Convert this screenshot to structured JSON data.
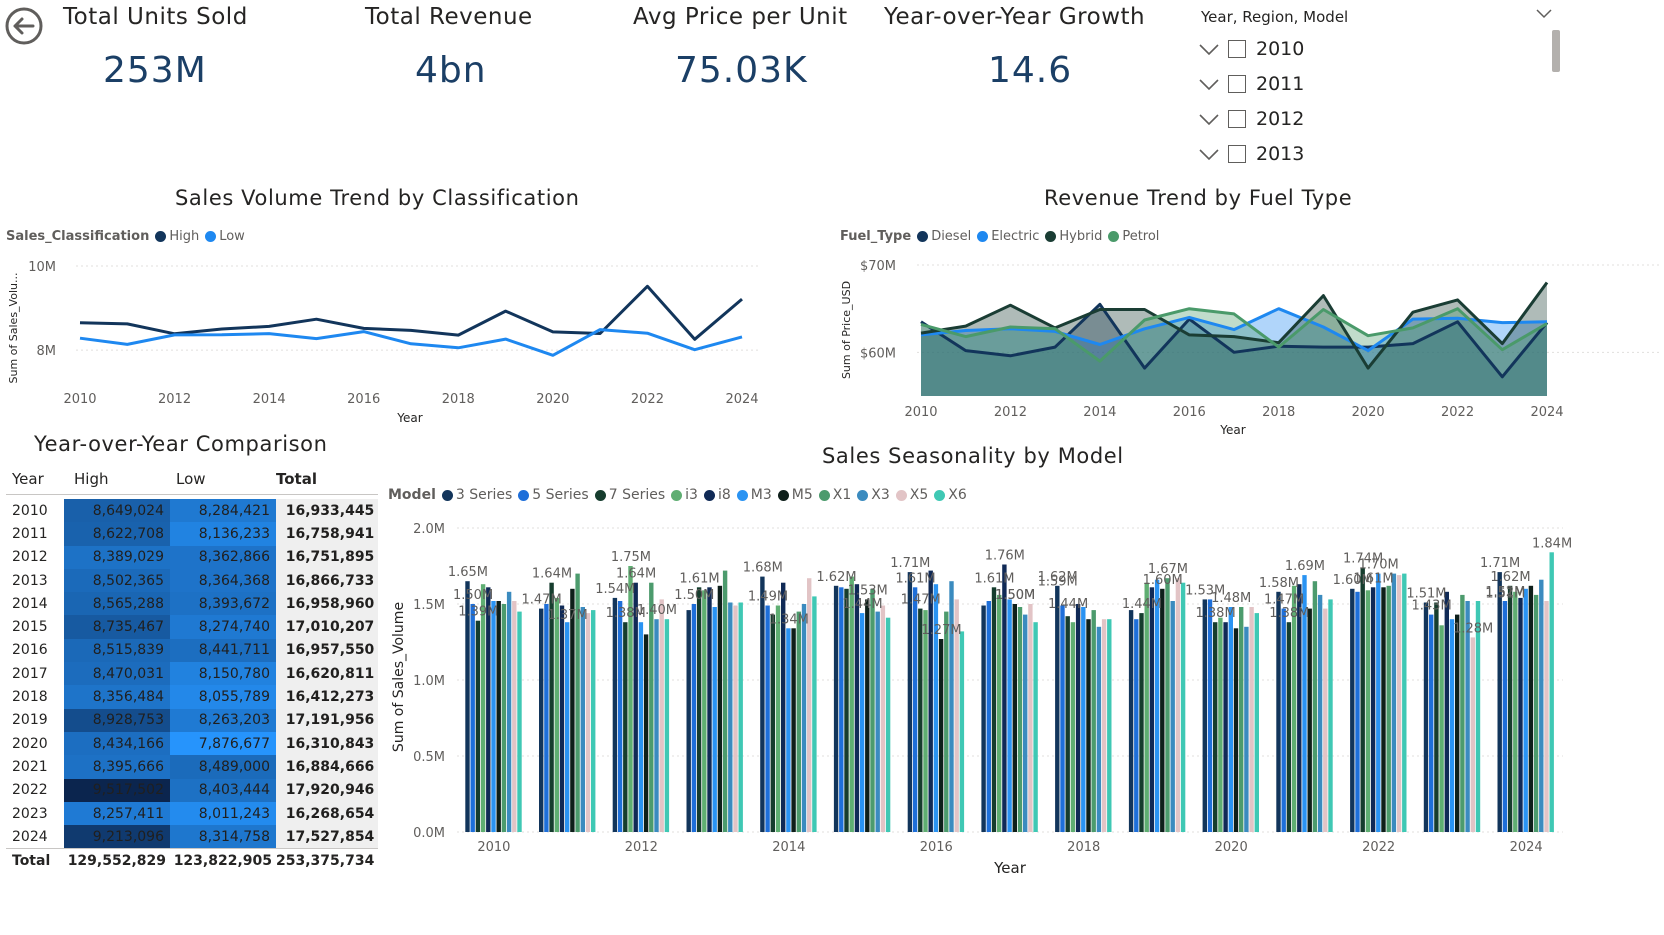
{
  "back_button": {
    "icon": "back-arrow-icon"
  },
  "kpis": [
    {
      "title": "Total Units Sold",
      "value": "253M"
    },
    {
      "title": "Total Revenue",
      "value": "4bn"
    },
    {
      "title": "Avg Price per Unit",
      "value": "75.03K"
    },
    {
      "title": "Year-over-Year Growth",
      "value": "14.6"
    }
  ],
  "slicer": {
    "header": "Year, Region, Model",
    "items": [
      "2010",
      "2011",
      "2012",
      "2013"
    ]
  },
  "volume_chart": {
    "title": "Sales Volume Trend by Classification",
    "legend_title": "Sales_Classification",
    "legend": [
      "High",
      "Low"
    ],
    "y_axis_label": "Sum of Sales_Volu...",
    "x_axis_label": "Year",
    "y_ticks": [
      "10M",
      "8M"
    ],
    "x_ticks": [
      "2010",
      "2012",
      "2014",
      "2016",
      "2018",
      "2020",
      "2022",
      "2024"
    ]
  },
  "revenue_chart": {
    "title": "Revenue Trend by Fuel Type",
    "legend_title": "Fuel_Type",
    "legend": [
      "Diesel",
      "Electric",
      "Hybrid",
      "Petrol"
    ],
    "y_axis_label": "Sum of Price_USD",
    "x_axis_label": "Year",
    "y_ticks": [
      "$70M",
      "$60M"
    ],
    "x_ticks": [
      "2010",
      "2012",
      "2014",
      "2016",
      "2018",
      "2020",
      "2022",
      "2024"
    ]
  },
  "matrix": {
    "title": "Year-over-Year Comparison",
    "headers": [
      "Year",
      "High",
      "Low",
      "Total"
    ],
    "rows": [
      [
        "2010",
        "8,649,024",
        "8,284,421",
        "16,933,445"
      ],
      [
        "2011",
        "8,622,708",
        "8,136,233",
        "16,758,941"
      ],
      [
        "2012",
        "8,389,029",
        "8,362,866",
        "16,751,895"
      ],
      [
        "2013",
        "8,502,365",
        "8,364,368",
        "16,866,733"
      ],
      [
        "2014",
        "8,565,288",
        "8,393,672",
        "16,958,960"
      ],
      [
        "2015",
        "8,735,467",
        "8,274,740",
        "17,010,207"
      ],
      [
        "2016",
        "8,515,839",
        "8,441,711",
        "16,957,550"
      ],
      [
        "2017",
        "8,470,031",
        "8,150,780",
        "16,620,811"
      ],
      [
        "2018",
        "8,356,484",
        "8,055,789",
        "16,412,273"
      ],
      [
        "2019",
        "8,928,753",
        "8,263,203",
        "17,191,956"
      ],
      [
        "2020",
        "8,434,166",
        "7,876,677",
        "16,310,843"
      ],
      [
        "2021",
        "8,395,666",
        "8,489,000",
        "16,884,666"
      ],
      [
        "2022",
        "9,517,502",
        "8,403,444",
        "17,920,946"
      ],
      [
        "2023",
        "8,257,411",
        "8,011,243",
        "16,268,654"
      ],
      [
        "2024",
        "9,213,096",
        "8,314,758",
        "17,527,854"
      ]
    ],
    "total_row": [
      "Total",
      "129,552,829",
      "123,822,905",
      "253,375,734"
    ]
  },
  "seasonality_chart": {
    "title": "Sales Seasonality by Model",
    "legend_title": "Model",
    "y_axis_label": "Sum of Sales_Volume",
    "x_axis_label": "Year",
    "y_ticks": [
      "2.0M",
      "1.5M",
      "1.0M",
      "0.5M",
      "0.0M"
    ],
    "x_ticks": [
      "2010",
      "2012",
      "2014",
      "2016",
      "2018",
      "2020",
      "2022",
      "2024"
    ]
  },
  "colors": {
    "high": "#12355b",
    "low": "#1e88f0",
    "diesel": "#12355b",
    "electric": "#1e88f0",
    "hybrid": "#1a3d34",
    "petrol": "#4a9a6a",
    "kpi_value": "#1b3f66"
  },
  "chart_data": [
    {
      "type": "line",
      "title": "Sales Volume Trend by Classification",
      "x": [
        2010,
        2011,
        2012,
        2013,
        2014,
        2015,
        2016,
        2017,
        2018,
        2019,
        2020,
        2021,
        2022,
        2023,
        2024
      ],
      "series": [
        {
          "name": "High",
          "values": [
            8649024,
            8622708,
            8389029,
            8502365,
            8565288,
            8735467,
            8515839,
            8470031,
            8356484,
            8928753,
            8434166,
            8395666,
            9517502,
            8257411,
            9213096
          ]
        },
        {
          "name": "Low",
          "values": [
            8284421,
            8136233,
            8362866,
            8364368,
            8393672,
            8274740,
            8441711,
            8150780,
            8055789,
            8263203,
            7876677,
            8489000,
            8403444,
            8011243,
            8314758
          ]
        }
      ],
      "xlabel": "Year",
      "ylabel": "Sum of Sales_Volume",
      "ylim": [
        7100000,
        10000000
      ]
    },
    {
      "type": "area",
      "title": "Revenue Trend by Fuel Type",
      "x": [
        2010,
        2011,
        2012,
        2013,
        2014,
        2015,
        2016,
        2017,
        2018,
        2019,
        2020,
        2021,
        2022,
        2023,
        2024
      ],
      "series": [
        {
          "name": "Diesel",
          "values": [
            63.5,
            60.2,
            59.6,
            60.6,
            65.5,
            58.2,
            63.8,
            60.0,
            60.7,
            60.6,
            60.6,
            61.0,
            63.5,
            57.2,
            63.4
          ]
        },
        {
          "name": "Electric",
          "values": [
            62.0,
            62.5,
            62.7,
            62.4,
            60.9,
            62.7,
            64.0,
            62.6,
            65.0,
            62.9,
            60.2,
            63.8,
            63.9,
            63.4,
            63.5
          ]
        },
        {
          "name": "Hybrid",
          "values": [
            62.2,
            63.0,
            65.4,
            62.8,
            64.9,
            64.9,
            62.0,
            61.8,
            61.1,
            66.5,
            58.2,
            64.6,
            66.0,
            61.0,
            68.0
          ]
        },
        {
          "name": "Petrol",
          "values": [
            63.2,
            61.8,
            62.9,
            62.7,
            59.0,
            63.7,
            65.0,
            64.4,
            60.6,
            64.9,
            61.9,
            62.8,
            65.0,
            60.3,
            63.3
          ]
        }
      ],
      "xlabel": "Year",
      "ylabel": "Sum of Price_USD",
      "ylim": [
        55000000,
        70000000
      ]
    },
    {
      "type": "bar",
      "title": "Sales Seasonality by Model",
      "categories": [
        "2010",
        "2011",
        "2012",
        "2013",
        "2014",
        "2015",
        "2016",
        "2017",
        "2018",
        "2019",
        "2020",
        "2021",
        "2022",
        "2023",
        "2024"
      ],
      "series": [
        {
          "name": "3 Series",
          "color": "#12355b",
          "values": [
            1.65,
            1.47,
            1.54,
            1.46,
            1.68,
            1.62,
            1.71,
            1.49,
            1.62,
            1.46,
            1.53,
            1.58,
            1.6,
            1.51,
            1.71
          ]
        },
        {
          "name": "5 Series",
          "color": "#1e6fd9",
          "values": [
            1.5,
            1.5,
            1.52,
            1.5,
            1.49,
            1.61,
            1.61,
            1.52,
            1.49,
            1.4,
            1.53,
            1.47,
            1.58,
            1.43,
            1.52
          ]
        },
        {
          "name": "7 Series",
          "color": "#163d2e",
          "values": [
            1.39,
            1.64,
            1.38,
            1.61,
            1.43,
            1.6,
            1.47,
            1.61,
            1.42,
            1.44,
            1.38,
            1.38,
            1.74,
            1.51,
            1.62
          ]
        },
        {
          "name": "i3",
          "color": "#5fae72",
          "values": [
            1.63,
            1.54,
            1.75,
            1.59,
            1.49,
            1.68,
            1.46,
            1.56,
            1.38,
            1.64,
            1.41,
            1.62,
            1.59,
            1.36,
            1.58
          ]
        },
        {
          "name": "i8",
          "color": "#102a56",
          "values": [
            1.61,
            1.49,
            1.64,
            1.61,
            1.64,
            1.63,
            1.72,
            1.76,
            1.5,
            1.61,
            1.38,
            1.63,
            1.61,
            1.58,
            1.54
          ]
        },
        {
          "name": "M3",
          "color": "#2a93f2",
          "values": [
            1.52,
            1.38,
            1.38,
            1.48,
            1.34,
            1.44,
            1.63,
            1.53,
            1.48,
            1.66,
            1.48,
            1.69,
            1.7,
            1.4,
            1.6
          ]
        },
        {
          "name": "M5",
          "color": "#0e1f1a",
          "values": [
            1.52,
            1.6,
            1.3,
            1.62,
            1.34,
            1.53,
            1.27,
            1.5,
            1.4,
            1.6,
            1.34,
            1.47,
            1.61,
            1.43,
            1.62
          ]
        },
        {
          "name": "X1",
          "color": "#4c9b6d",
          "values": [
            1.5,
            1.7,
            1.64,
            1.72,
            1.45,
            1.6,
            1.45,
            1.48,
            1.46,
            1.67,
            1.48,
            1.65,
            1.62,
            1.56,
            1.56
          ]
        },
        {
          "name": "X3",
          "color": "#3b8bbf",
          "values": [
            1.58,
            1.48,
            1.4,
            1.51,
            1.5,
            1.45,
            1.65,
            1.43,
            1.35,
            1.52,
            1.35,
            1.56,
            1.7,
            1.52,
            1.66
          ]
        },
        {
          "name": "X5",
          "color": "#e2c4c6",
          "values": [
            1.52,
            1.44,
            1.53,
            1.49,
            1.67,
            1.49,
            1.53,
            1.5,
            1.4,
            1.67,
            1.48,
            1.47,
            1.69,
            1.28,
            1.52
          ]
        },
        {
          "name": "X6",
          "color": "#3fc8b4",
          "values": [
            1.45,
            1.46,
            1.4,
            1.51,
            1.55,
            1.41,
            1.32,
            1.38,
            1.4,
            1.64,
            1.44,
            1.53,
            1.7,
            1.52,
            1.84
          ]
        }
      ],
      "data_labels": [
        [
          1.65,
          1.5,
          1.39
        ],
        [
          1.64,
          1.47,
          1.37
        ],
        [
          1.75,
          1.54,
          1.64,
          1.4,
          1.38
        ],
        [
          1.61,
          1.5
        ],
        [
          1.68,
          1.49,
          1.34
        ],
        [
          1.62,
          1.53,
          1.44
        ],
        [
          1.71,
          1.61,
          1.47,
          1.27
        ],
        [
          1.76,
          1.61,
          1.5,
          1.5
        ],
        [
          1.62,
          1.59,
          1.44
        ],
        [
          1.6,
          1.67,
          1.44
        ],
        [
          1.53,
          1.48,
          1.38
        ],
        [
          1.58,
          1.69,
          1.47,
          1.38
        ],
        [
          1.74,
          1.7,
          1.6,
          1.61
        ],
        [
          1.51,
          1.43,
          1.28
        ],
        [
          1.84,
          1.71,
          1.62,
          1.51,
          1.52
        ]
      ],
      "xlabel": "Year",
      "ylabel": "Sum of Sales_Volume",
      "ylim": [
        0,
        2.0
      ],
      "units": "M"
    }
  ]
}
